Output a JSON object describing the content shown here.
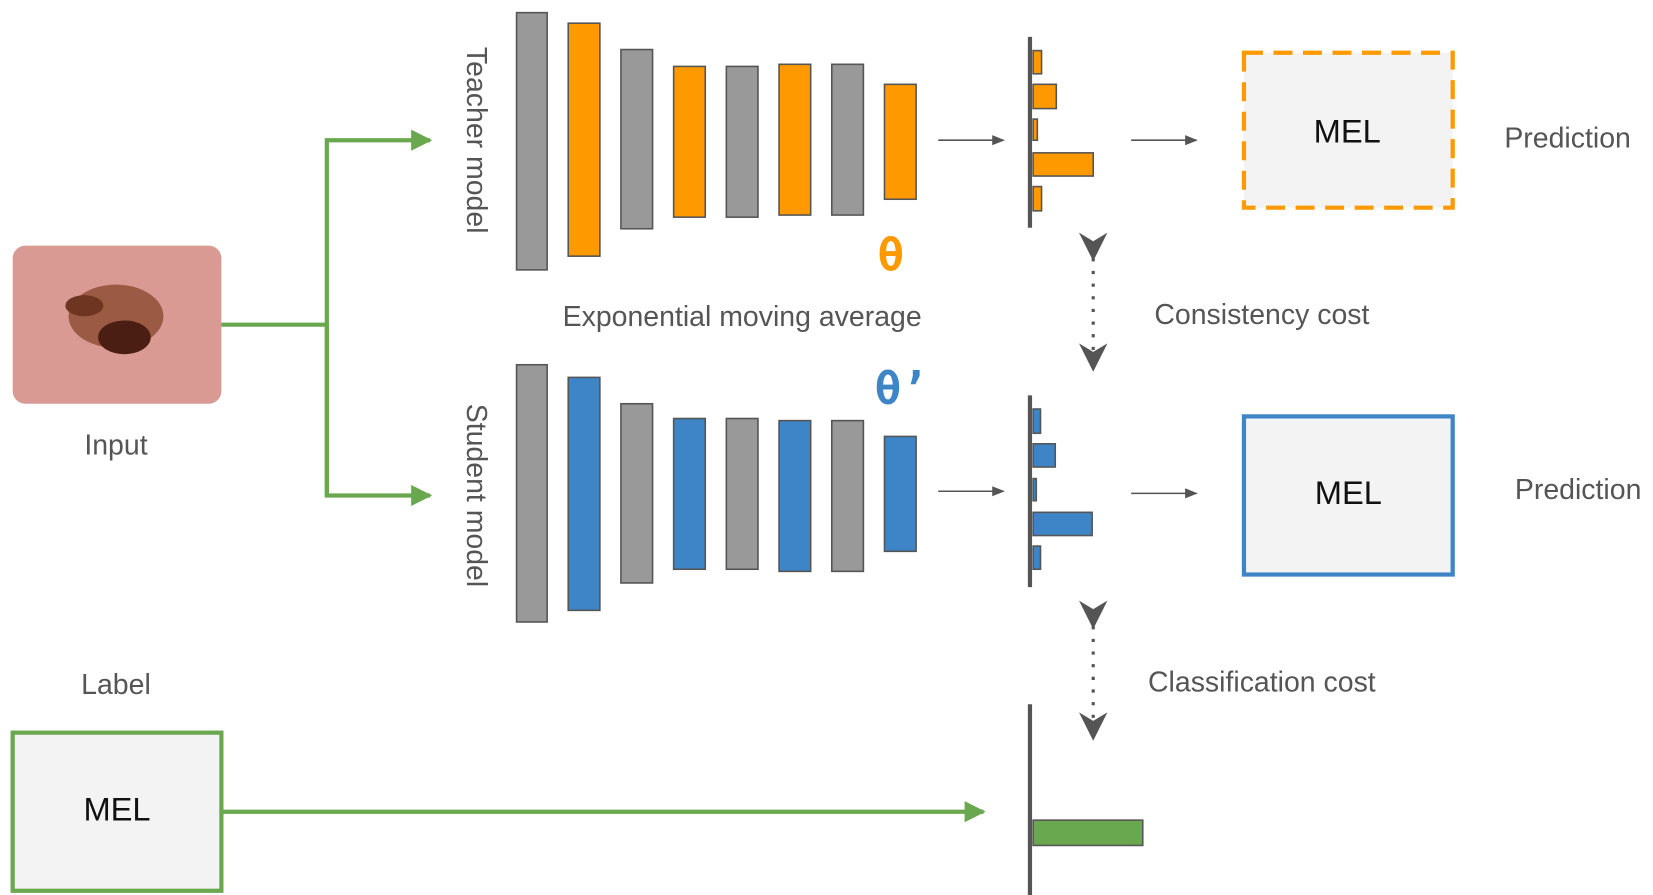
{
  "input": {
    "caption": "Input"
  },
  "teacher": {
    "label": "Teacher model",
    "symbol": "θ",
    "prediction": "MEL",
    "prediction_caption": "Prediction"
  },
  "student": {
    "label": "Student model",
    "symbol": "θ’",
    "prediction": "MEL",
    "prediction_caption": "Prediction"
  },
  "ema": "Exponential moving average",
  "consistency_cost": "Consistency cost",
  "classification_cost": "Classification cost",
  "label": {
    "caption": "Label",
    "value": "MEL"
  }
}
